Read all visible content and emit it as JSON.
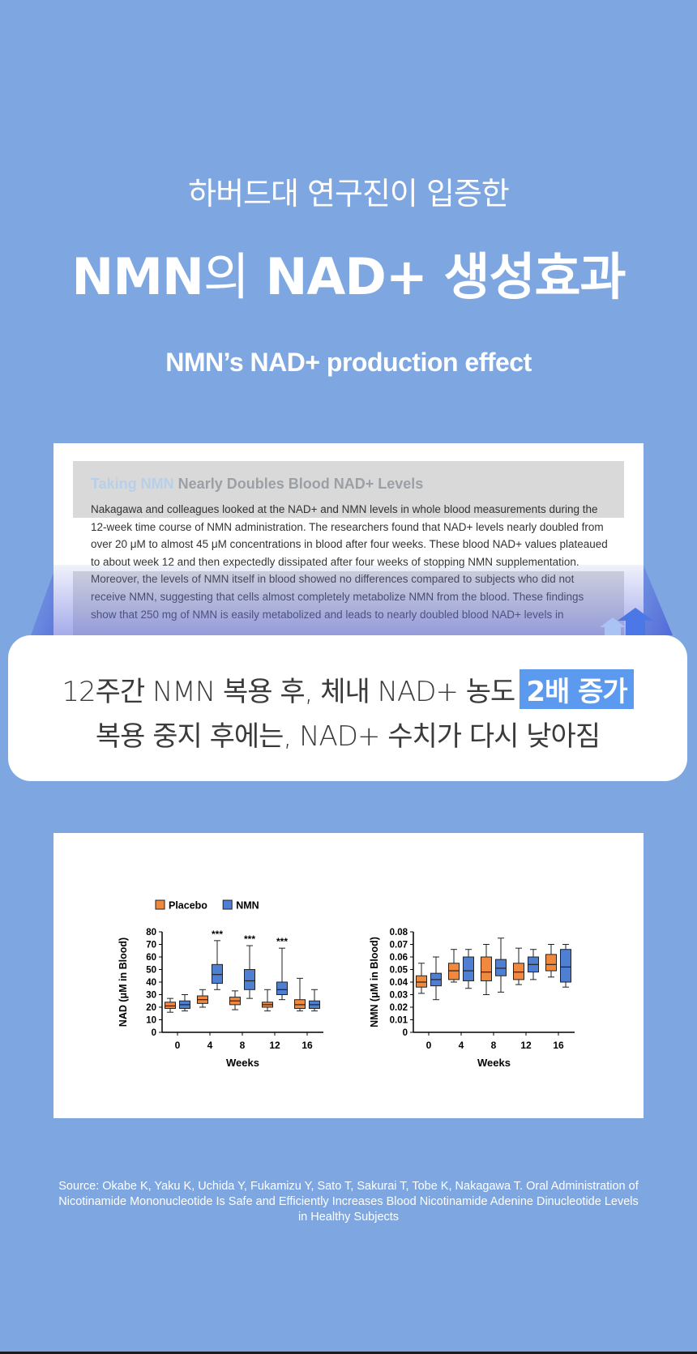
{
  "header": {
    "kicker": "하버드대 연구진이 입증한",
    "headline_nmn": "NMN",
    "headline_particle": "의",
    "headline_rest": " NAD+ 생성효과",
    "english": "NMN’s NAD+ production effect"
  },
  "excerpt": {
    "title_highlight": "Taking NMN",
    "title_rest": " Nearly Doubles Blood NAD+ Levels",
    "body": "Nakagawa and colleagues looked at the NAD+ and NMN levels in whole blood measurements during the 12-week time course of NMN administration. The researchers found that NAD+ levels nearly doubled from over 20 μM to almost 45 μM concentrations in blood after four weeks. These blood NAD+ values plateaued to about week 12 and then expectedly dissipated after four weeks of stopping NMN supplementation. Moreover, the levels of NMN itself in blood showed no differences compared to subjects who did not receive NMN, suggesting that cells almost completely metabolize NMN from the blood. These findings show that 250 mg of NMN is easily metabolized and leads to nearly doubled blood NAD+ levels in"
  },
  "callout": {
    "line1_text": "12주간 NMN 복용 후, 체내 NAD+ 농도",
    "line1_badge": "2배 증가",
    "line2_text": "복용 중지 후에는, NAD+ 수치가 다시 낮아짐"
  },
  "chart_data": [
    {
      "type": "box",
      "title": "",
      "xlabel": "Weeks",
      "ylabel": "NAD (μM in Blood)",
      "categories": [
        "0",
        "4",
        "8",
        "12",
        "16"
      ],
      "ylim": [
        0,
        80
      ],
      "yticks": [
        "0",
        "10",
        "20",
        "30",
        "40",
        "50",
        "60",
        "70",
        "80"
      ],
      "legend": [
        "Placebo",
        "NMN"
      ],
      "legend_position": "top-left",
      "grid": false,
      "significance": [
        "",
        "***",
        "***",
        "***",
        ""
      ],
      "series": [
        {
          "name": "Placebo",
          "color": "#f0883e",
          "boxes": [
            {
              "min": 16,
              "q1": 19,
              "median": 21,
              "q3": 24,
              "max": 27
            },
            {
              "min": 20,
              "q1": 23,
              "median": 26,
              "q3": 29,
              "max": 34
            },
            {
              "min": 18,
              "q1": 22,
              "median": 25,
              "q3": 28,
              "max": 33
            },
            {
              "min": 17,
              "q1": 20,
              "median": 22,
              "q3": 24,
              "max": 34
            },
            {
              "min": 17,
              "q1": 19,
              "median": 22,
              "q3": 26,
              "max": 43
            }
          ]
        },
        {
          "name": "NMN",
          "color": "#4f7fd2",
          "boxes": [
            {
              "min": 17,
              "q1": 19,
              "median": 22,
              "q3": 25,
              "max": 30
            },
            {
              "min": 34,
              "q1": 39,
              "median": 46,
              "q3": 54,
              "max": 73
            },
            {
              "min": 27,
              "q1": 34,
              "median": 41,
              "q3": 50,
              "max": 69
            },
            {
              "min": 26,
              "q1": 30,
              "median": 34,
              "q3": 40,
              "max": 67
            },
            {
              "min": 17,
              "q1": 19,
              "median": 22,
              "q3": 25,
              "max": 34
            }
          ]
        }
      ]
    },
    {
      "type": "box",
      "title": "",
      "xlabel": "Weeks",
      "ylabel": "NMN (μM in Blood)",
      "categories": [
        "0",
        "4",
        "8",
        "12",
        "16"
      ],
      "ylim": [
        0,
        0.08
      ],
      "yticks": [
        "0",
        "0.01",
        "0.02",
        "0.03",
        "0.04",
        "0.05",
        "0.06",
        "0.07",
        "0.08"
      ],
      "grid": false,
      "series": [
        {
          "name": "Placebo",
          "color": "#f0883e",
          "boxes": [
            {
              "min": 0.031,
              "q1": 0.036,
              "median": 0.04,
              "q3": 0.045,
              "max": 0.055
            },
            {
              "min": 0.04,
              "q1": 0.042,
              "median": 0.049,
              "q3": 0.055,
              "max": 0.066
            },
            {
              "min": 0.03,
              "q1": 0.041,
              "median": 0.048,
              "q3": 0.06,
              "max": 0.07
            },
            {
              "min": 0.038,
              "q1": 0.042,
              "median": 0.048,
              "q3": 0.055,
              "max": 0.067
            },
            {
              "min": 0.044,
              "q1": 0.049,
              "median": 0.054,
              "q3": 0.062,
              "max": 0.07
            }
          ]
        },
        {
          "name": "NMN",
          "color": "#4f7fd2",
          "boxes": [
            {
              "min": 0.026,
              "q1": 0.037,
              "median": 0.042,
              "q3": 0.047,
              "max": 0.06
            },
            {
              "min": 0.035,
              "q1": 0.041,
              "median": 0.049,
              "q3": 0.06,
              "max": 0.066
            },
            {
              "min": 0.032,
              "q1": 0.045,
              "median": 0.051,
              "q3": 0.058,
              "max": 0.075
            },
            {
              "min": 0.042,
              "q1": 0.048,
              "median": 0.054,
              "q3": 0.06,
              "max": 0.066
            },
            {
              "min": 0.036,
              "q1": 0.04,
              "median": 0.052,
              "q3": 0.066,
              "max": 0.07
            }
          ]
        }
      ]
    }
  ],
  "source": {
    "text": "Source: Okabe K, Yaku K, Uchida Y, Fukamizu Y, Sato T, Sakurai T, Tobe K, Nakagawa T. Oral Administration of Nicotinamide Mononucleotide Is Safe and Efficiently Increases Blood Nicotinamide Adenine Dinucleotide Levels in Healthy Subjects"
  },
  "colors": {
    "background": "#7ea7e2",
    "accent": "#5b9aee",
    "placebo": "#f0883e",
    "nmn": "#4f7fd2"
  },
  "icons": {
    "arrows": "double-up-arrow-icon"
  }
}
